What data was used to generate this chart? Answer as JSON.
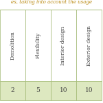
{
  "title": "es, taking into account the usage",
  "columns": [
    "Demolition",
    "Flexibility",
    "Interior design",
    "Exterior design"
  ],
  "values": [
    "2",
    "5",
    "10",
    "10"
  ],
  "header_bg": "#ffffff",
  "data_bg": "#dde8c0",
  "border_color": "#a0b870",
  "title_color": "#b8860b",
  "text_color": "#444444",
  "header_font_size": 5.5,
  "value_font_size": 6.5,
  "title_font_size": 5.0
}
